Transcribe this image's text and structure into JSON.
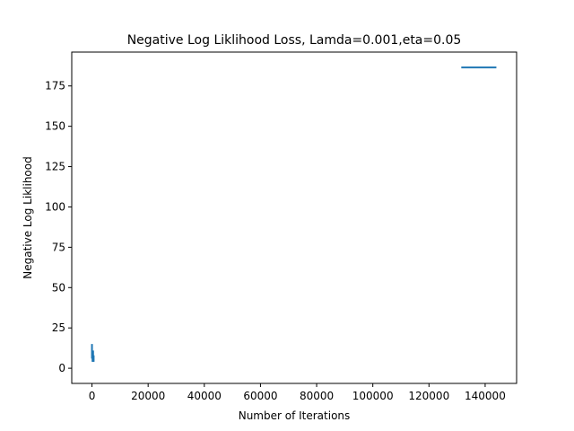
{
  "chart_data": {
    "type": "line",
    "title": "Negative Log Liklihood Loss, Lamda=0.001,eta=0.05",
    "xlabel": "Number of Iterations",
    "ylabel": "Negative Log Liklihood",
    "xlim": [
      -7200,
      151200
    ],
    "ylim": [
      -9.4,
      196
    ],
    "xticks": [
      0,
      20000,
      40000,
      60000,
      80000,
      100000,
      120000,
      140000
    ],
    "xtick_labels": [
      "0",
      "20000",
      "40000",
      "60000",
      "80000",
      "100000",
      "120000",
      "140000"
    ],
    "yticks": [
      0,
      25,
      50,
      75,
      100,
      125,
      150,
      175
    ],
    "ytick_labels": [
      "0",
      "25",
      "50",
      "75",
      "100",
      "125",
      "150",
      "175"
    ],
    "grid": false,
    "color": "#1f77b4",
    "series": [
      {
        "name": "",
        "segments": [
          {
            "x": [
              0,
              0,
              0,
              0,
              0
            ],
            "y": [
              15,
              9,
              12,
              6,
              8
            ]
          },
          {
            "x": [
              200,
              200,
              200,
              200,
              200
            ],
            "y": [
              5,
              9,
              4,
              7,
              5
            ]
          },
          {
            "x": [
              400,
              400,
              400,
              400,
              400
            ],
            "y": [
              4,
              8,
              10,
              5,
              11
            ]
          },
          {
            "x": [
              600,
              600,
              600,
              600
            ],
            "y": [
              6,
              4,
              8,
              5
            ]
          },
          {
            "x": [
              131500,
              144000
            ],
            "y": [
              186.5,
              186.5
            ]
          }
        ]
      }
    ]
  }
}
